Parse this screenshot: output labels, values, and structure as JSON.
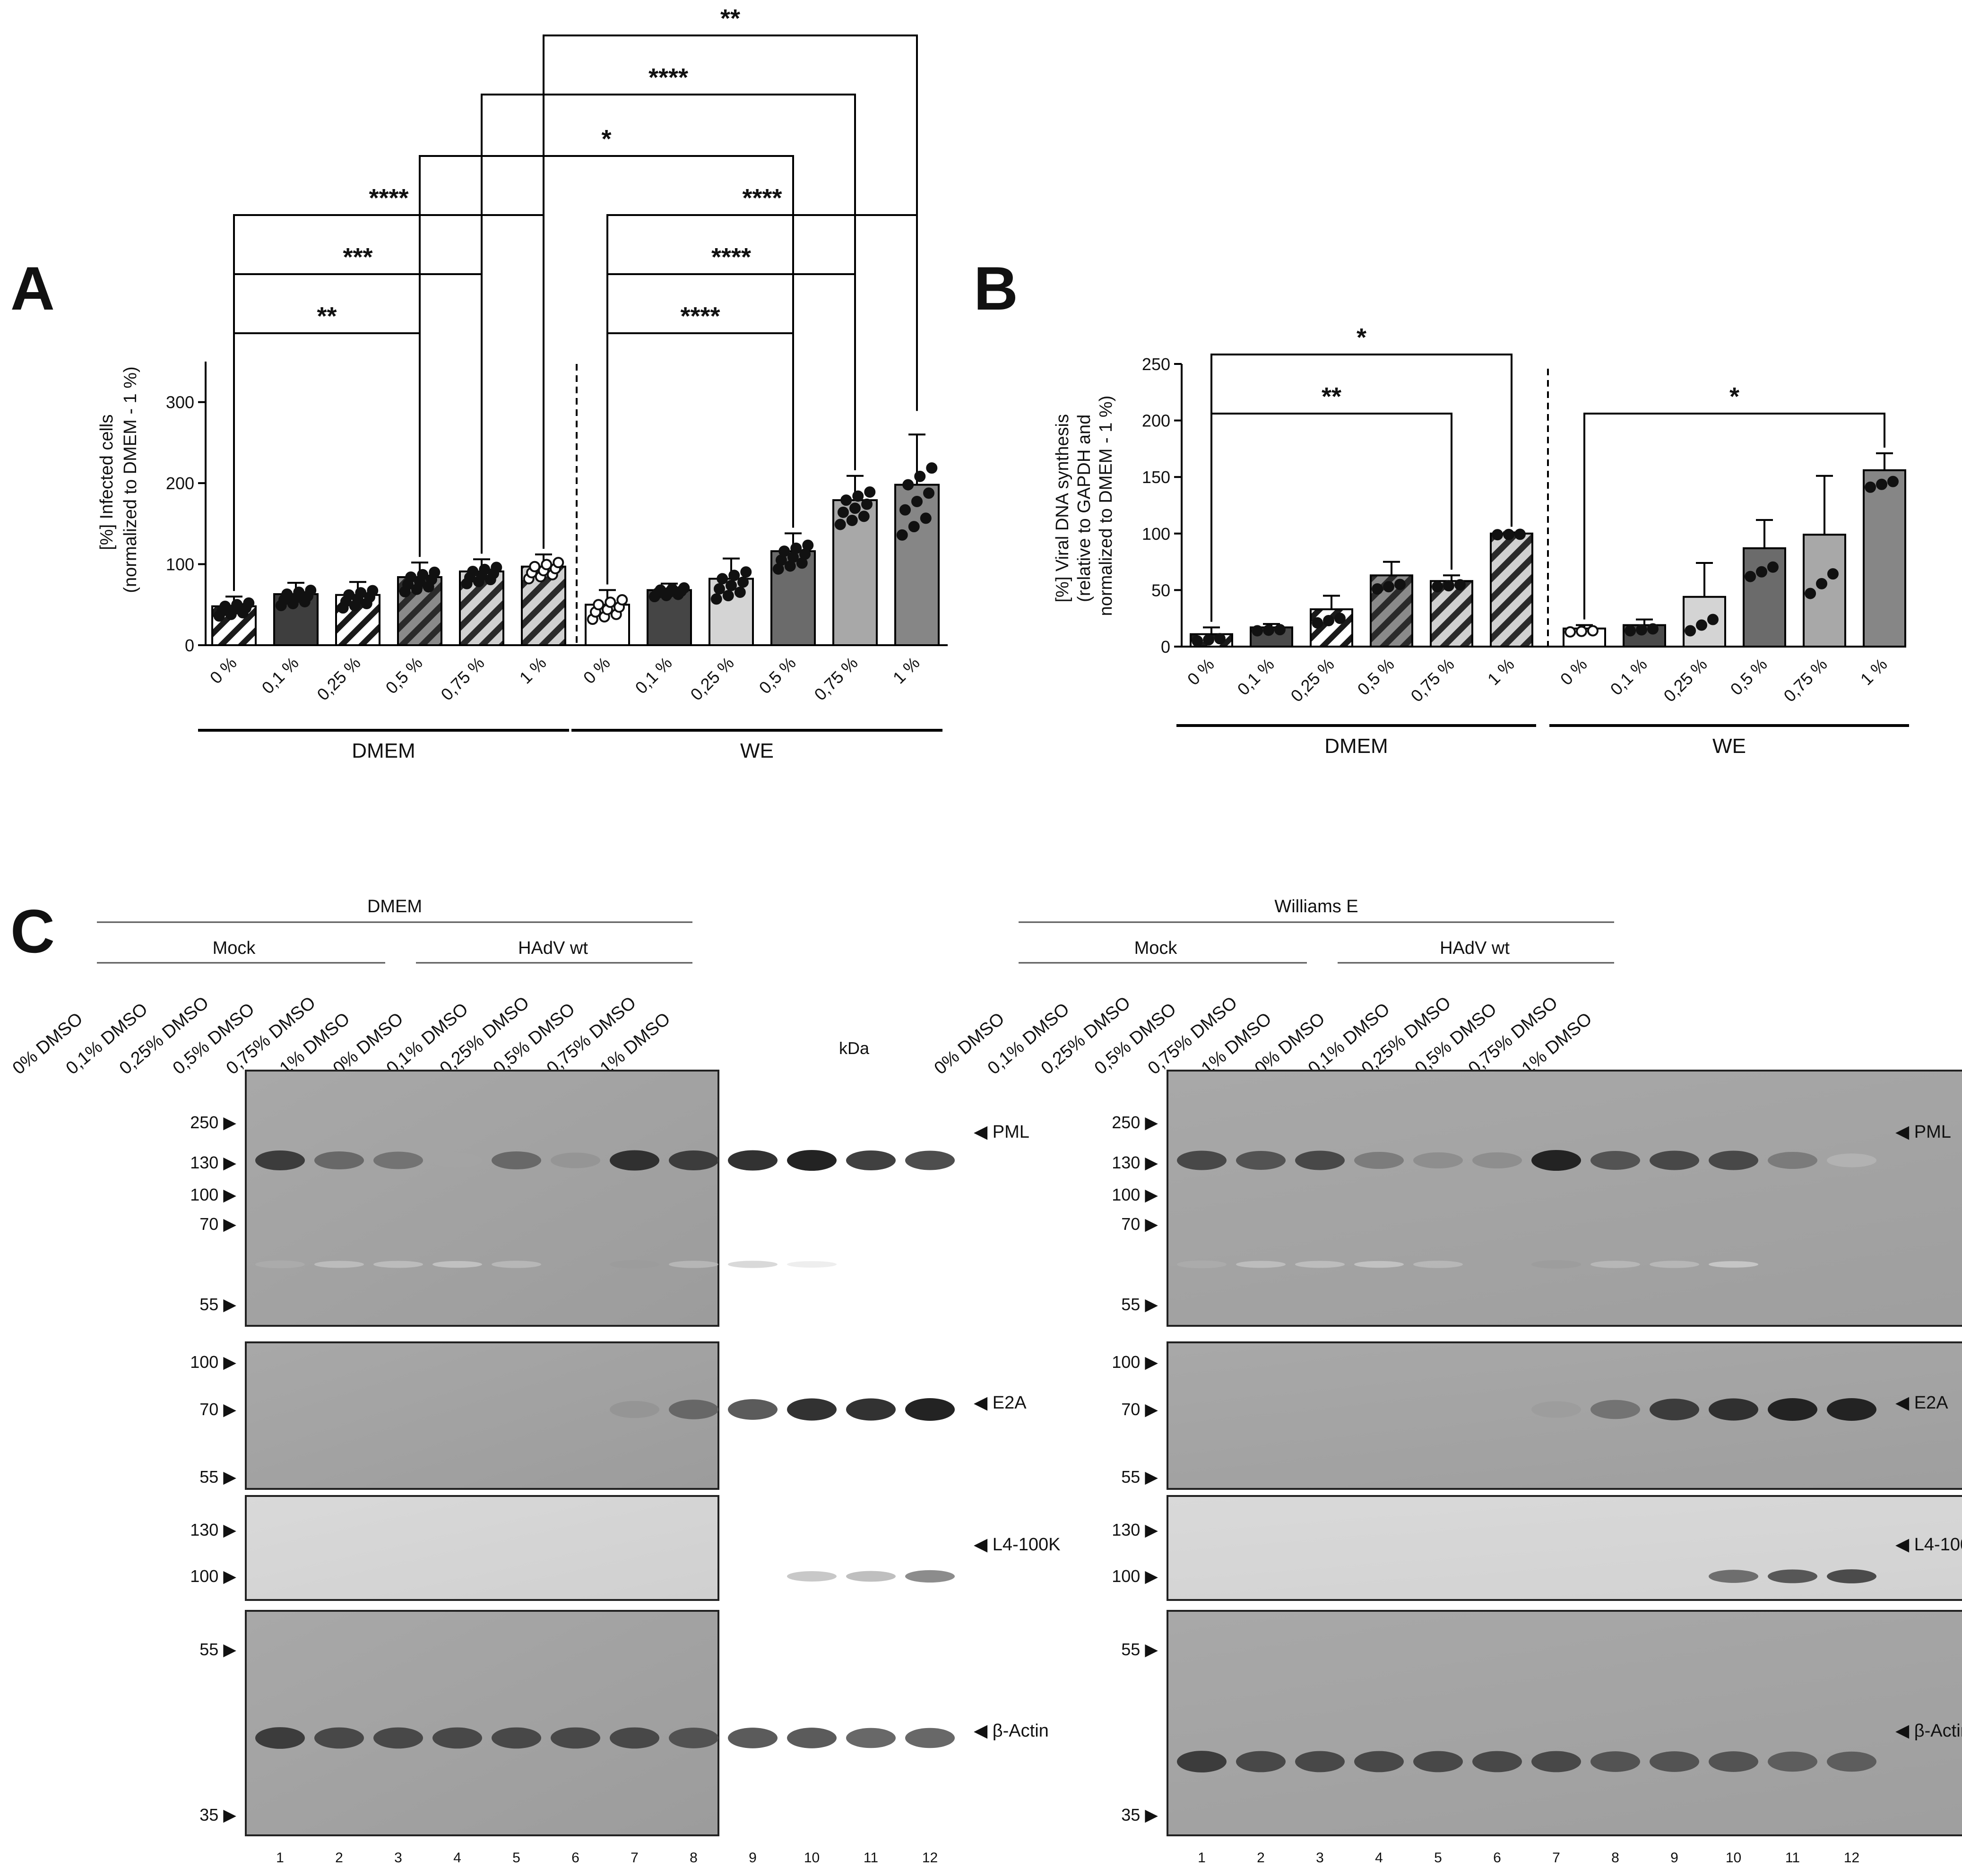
{
  "panel_labels": {
    "a": "A",
    "b": "B",
    "c": "C"
  },
  "chart_data": [
    {
      "id": "A",
      "type": "bar",
      "ylabel_line1": "[%]  Infected cells",
      "ylabel_line2": "(normalized to DMEM - 1 %)",
      "ylim": [
        0,
        350
      ],
      "yticks": [
        0,
        100,
        200,
        300
      ],
      "categories": [
        "0 %",
        "0,1 %",
        "0,25 %",
        "0,5 %",
        "0,75 %",
        "1 %",
        "0 %",
        "0,1 %",
        "0,25 %",
        "0,5 %",
        "0,75 %",
        "1 %"
      ],
      "groups": [
        {
          "label": "DMEM",
          "start": 0,
          "end": 5
        },
        {
          "label": "WE",
          "start": 6,
          "end": 11
        }
      ],
      "values": [
        48,
        63,
        62,
        84,
        91,
        97,
        50,
        68,
        82,
        116,
        179,
        198
      ],
      "errors": [
        12,
        14,
        16,
        18,
        15,
        15,
        18,
        8,
        25,
        22,
        30,
        62
      ],
      "fills": [
        "hatch-light",
        "#3e3e3e",
        "hatch-light",
        "hatch-dark",
        "hatch-mid",
        "hatch-mid",
        "#ffffff",
        "#454545",
        "#d4d4d4",
        "#6b6b6b",
        "#a8a8a8",
        "#868686"
      ],
      "significance": [
        {
          "from": 0,
          "to": 3,
          "label": "**"
        },
        {
          "from": 0,
          "to": 4,
          "label": "***"
        },
        {
          "from": 0,
          "to": 5,
          "label": "****"
        },
        {
          "from": 6,
          "to": 9,
          "label": "****"
        },
        {
          "from": 6,
          "to": 10,
          "label": "****"
        },
        {
          "from": 6,
          "to": 11,
          "label": "****"
        },
        {
          "from": 3,
          "to": 9,
          "label": "*"
        },
        {
          "from": 4,
          "to": 10,
          "label": "****"
        },
        {
          "from": 5,
          "to": 11,
          "label": "**"
        }
      ]
    },
    {
      "id": "B",
      "type": "bar",
      "ylabel_line1": "[%]  Viral DNA synthesis",
      "ylabel_line2": "(relative to GAPDH and",
      "ylabel_line3": "normalized to DMEM - 1  %)",
      "ylim": [
        0,
        250
      ],
      "yticks": [
        0,
        50,
        100,
        150,
        200,
        250
      ],
      "categories": [
        "0 %",
        "0,1 %",
        "0,25 %",
        "0,5 %",
        "0,75 %",
        "1 %",
        "0 %",
        "0,1 %",
        "0,25 %",
        "0,5 %",
        "0,75 %",
        "1 %"
      ],
      "groups": [
        {
          "label": "DMEM",
          "start": 0,
          "end": 5
        },
        {
          "label": "WE",
          "start": 6,
          "end": 11
        }
      ],
      "values": [
        11,
        17,
        33,
        63,
        58,
        100,
        16,
        19,
        44,
        87,
        99,
        156
      ],
      "errors": [
        6,
        3,
        12,
        12,
        5,
        1,
        3,
        5,
        30,
        25,
        52,
        15
      ],
      "fills": [
        "hatch-light",
        "#4a4a4a",
        "hatch-light",
        "hatch-dark",
        "hatch-mid",
        "hatch-mid",
        "#ffffff",
        "#4a4a4a",
        "#d4d4d4",
        "#6b6b6b",
        "#a8a8a8",
        "#868686"
      ],
      "significance": [
        {
          "from": 0,
          "to": 4,
          "label": "**"
        },
        {
          "from": 0,
          "to": 5,
          "label": "*"
        },
        {
          "from": 6,
          "to": 11,
          "label": "*"
        }
      ]
    }
  ],
  "blots": {
    "kda_label": "kDa",
    "lane_labels": [
      "0% DMSO",
      "0,1% DMSO",
      "0,25% DMSO",
      "0,5% DMSO",
      "0,75% DMSO",
      "1% DMSO",
      "0% DMSO",
      "0,1% DMSO",
      "0,25% DMSO",
      "0,5% DMSO",
      "0,75% DMSO",
      "1% DMSO"
    ],
    "lane_numbers": [
      "1",
      "2",
      "3",
      "4",
      "5",
      "6",
      "7",
      "8",
      "9",
      "10",
      "11",
      "12"
    ],
    "left": {
      "medium": "DMEM",
      "mock": "Mock",
      "virus": "HAdV wt",
      "pml_markers": [
        "250 ▶",
        "130 ▶",
        "100 ▶",
        "70 ▶",
        "55 ▶"
      ],
      "e2a_markers": [
        "100 ▶",
        "70 ▶",
        "55 ▶"
      ],
      "l4_markers": [
        "130 ▶",
        "100 ▶"
      ],
      "actin_markers": [
        "55 ▶",
        "35 ▶"
      ]
    },
    "right": {
      "medium": "Williams E",
      "mock": "Mock",
      "virus": "HAdV wt",
      "pml_markers": [
        "250 ▶",
        "130 ▶",
        "100 ▶",
        "70 ▶",
        "55 ▶"
      ],
      "e2a_markers": [
        "100 ▶",
        "70 ▶",
        "55 ▶"
      ],
      "l4_markers": [
        "130 ▶",
        "100 ▶"
      ],
      "actin_markers": [
        "55 ▶",
        "35 ▶"
      ]
    },
    "proteins": {
      "pml": "◀ PML",
      "e2a": "◀ E2A",
      "l4": "◀ L4-100K",
      "actin": "◀ β-Actin"
    }
  }
}
